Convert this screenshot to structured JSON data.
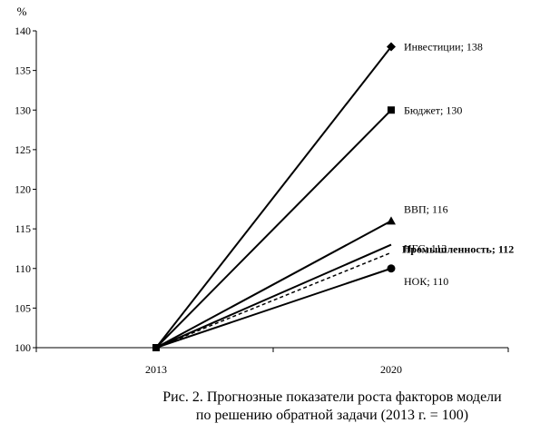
{
  "chart_data": {
    "type": "line",
    "ylabel": "%",
    "ylim": [
      100,
      140
    ],
    "yticks": [
      100,
      105,
      110,
      115,
      120,
      125,
      130,
      135,
      140
    ],
    "categories": [
      "2013",
      "2020"
    ],
    "grid": false,
    "series": [
      {
        "name": "Инвестиции",
        "label": "Инвестиции; 138",
        "values": [
          100,
          138
        ],
        "marker": "diamond",
        "style": "solid",
        "label_bold": false
      },
      {
        "name": "Бюджет",
        "label": "Бюджет; 130",
        "values": [
          100,
          130
        ],
        "marker": "square",
        "style": "solid",
        "label_bold": false
      },
      {
        "name": "ВВП",
        "label": "ВВП; 116",
        "values": [
          100,
          116
        ],
        "marker": "triangle",
        "style": "solid",
        "label_bold": false
      },
      {
        "name": "НГС",
        "label": "НГС; 113",
        "values": [
          100,
          113
        ],
        "marker": "none",
        "style": "solid",
        "label_bold": false
      },
      {
        "name": "Промышленность",
        "label": "Промышленность; 112",
        "values": [
          100,
          112
        ],
        "marker": "none",
        "style": "dashed",
        "label_bold": true
      },
      {
        "name": "НОК",
        "label": "НОК; 110",
        "values": [
          100,
          110
        ],
        "marker": "circle",
        "style": "solid",
        "label_bold": false
      }
    ]
  },
  "caption": {
    "line1": "Рис. 2. Прогнозные показатели роста факторов модели",
    "line2": "по решению обратной задачи (2013 г. = 100)"
  }
}
